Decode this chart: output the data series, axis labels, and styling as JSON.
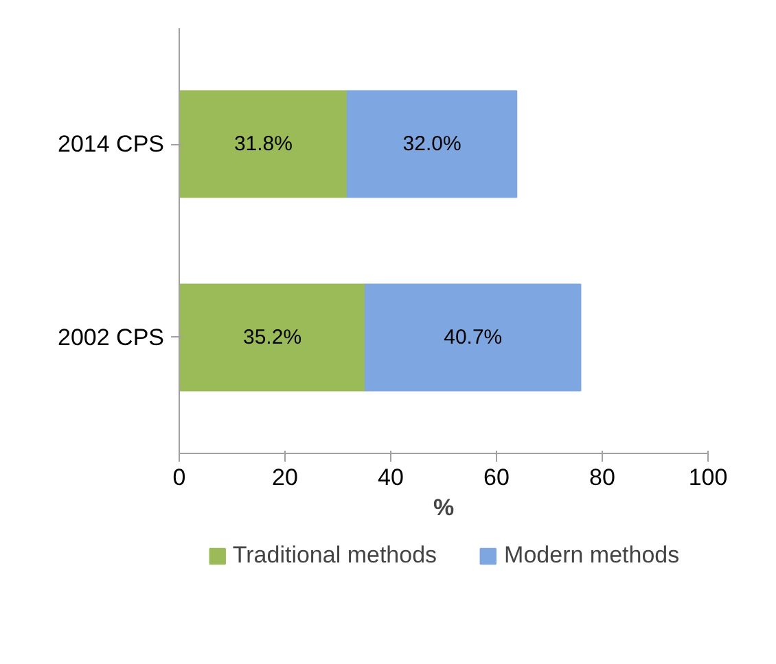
{
  "chart_data": {
    "type": "bar",
    "orientation": "horizontal",
    "stacked": true,
    "categories": [
      "2014 CPS",
      "2002 CPS"
    ],
    "series": [
      {
        "name": "Traditional methods",
        "color": "#9bbb59",
        "values": [
          31.8,
          35.2
        ],
        "value_labels": [
          "31.8%",
          "35.2%"
        ]
      },
      {
        "name": "Modern methods",
        "color": "#7ea6e0",
        "values": [
          32.0,
          40.7
        ],
        "value_labels": [
          "32.0%",
          "40.7%"
        ]
      }
    ],
    "xlabel": "%",
    "xlim": [
      0,
      100
    ],
    "xticks": [
      0,
      20,
      40,
      60,
      80,
      100
    ],
    "grid": false,
    "legend": "bottom"
  }
}
